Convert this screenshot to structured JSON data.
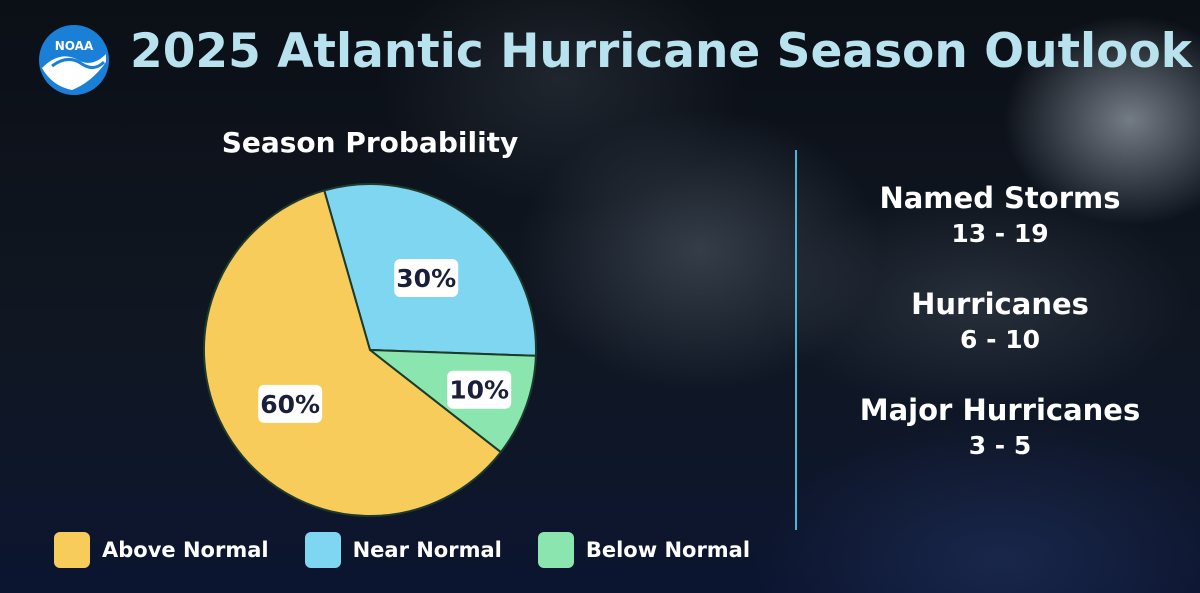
{
  "header": {
    "logo_text": "NOAA",
    "title": "2025 Atlantic Hurricane Season Outlook"
  },
  "chart_data": {
    "type": "pie",
    "title": "Season Probability",
    "categories": [
      "Above Normal",
      "Near Normal",
      "Below Normal"
    ],
    "values": [
      60,
      30,
      10
    ],
    "labels": [
      "60%",
      "30%",
      "10%"
    ],
    "colors": [
      "#f8cc5a",
      "#7fd6f0",
      "#8ae6ae"
    ],
    "legend_position": "bottom"
  },
  "stats": [
    {
      "label": "Named Storms",
      "value": "13 - 19"
    },
    {
      "label": "Hurricanes",
      "value": "6 - 10"
    },
    {
      "label": "Major Hurricanes",
      "value": "3 - 5"
    }
  ]
}
